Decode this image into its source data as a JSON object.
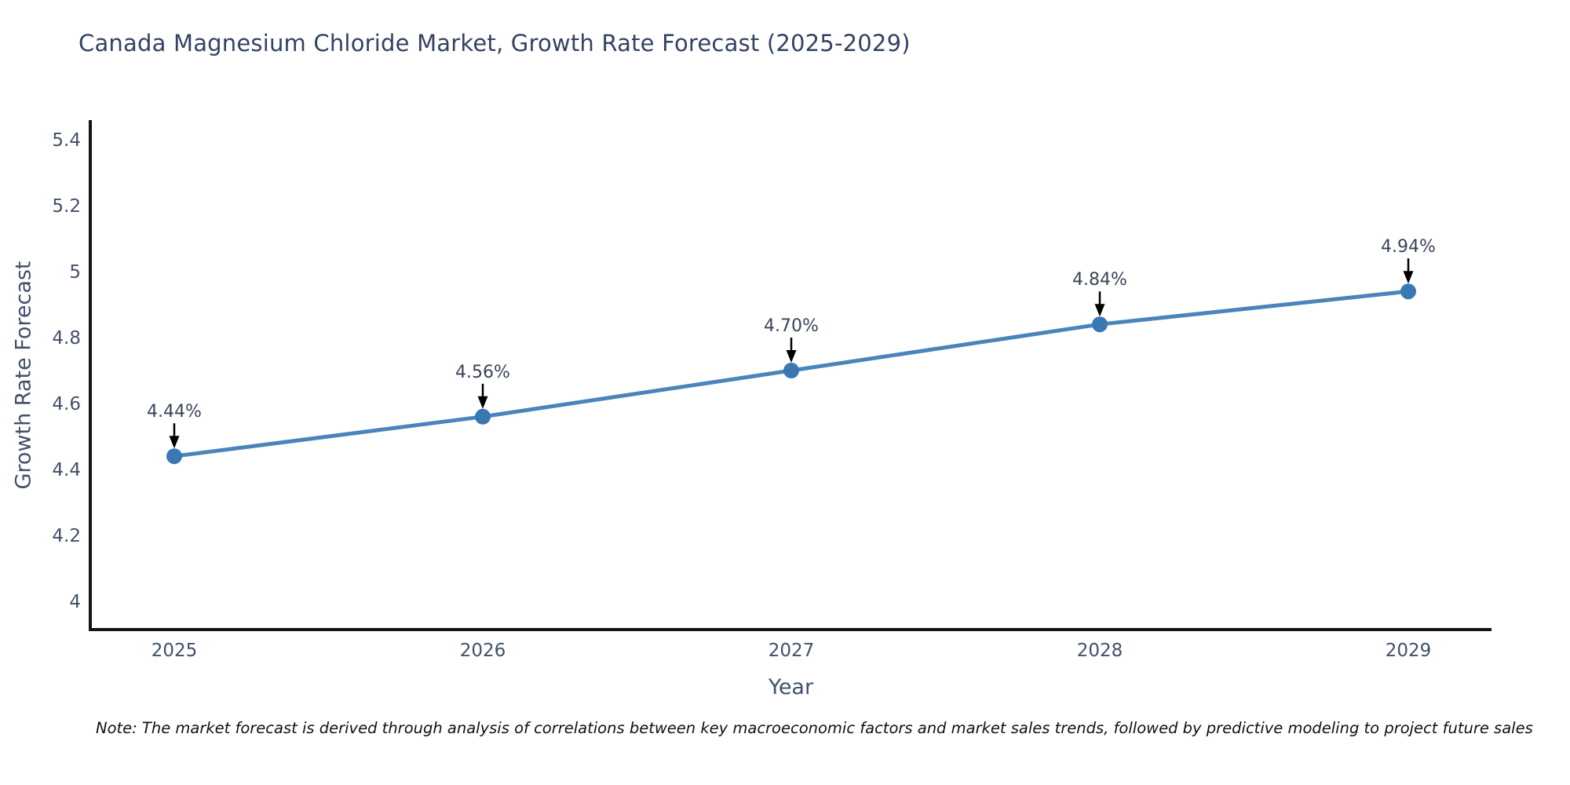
{
  "title": "Canada Magnesium Chloride Market, Growth Rate Forecast (2025-2029)",
  "note": "Note: The market forecast is derived through analysis of correlations between key macroeconomic factors and market sales trends, followed by predictive modeling to project future sales",
  "chart_data": {
    "type": "line",
    "title": "Canada Magnesium Chloride Market, Growth Rate Forecast (2025-2029)",
    "xlabel": "Year",
    "ylabel": "Growth Rate Forecast",
    "x": [
      2025,
      2026,
      2027,
      2028,
      2029
    ],
    "y": [
      4.44,
      4.56,
      4.7,
      4.84,
      4.94
    ],
    "point_labels": [
      "4.44%",
      "4.56%",
      "4.70%",
      "4.84%",
      "4.94%"
    ],
    "x_tick_labels": [
      "2025",
      "2026",
      "2027",
      "2028",
      "2029"
    ],
    "y_ticks": [
      5.4,
      5.2,
      5.0,
      4.8,
      4.6,
      4.4,
      4.2,
      4.0
    ],
    "y_tick_labels": [
      "5.4",
      "5.2",
      "5",
      "4.8",
      "4.6",
      "4.4",
      "4.2",
      "4"
    ],
    "ylim": [
      3.91,
      5.46
    ],
    "grid": false,
    "legend": false,
    "annotation_style": "black down-arrow from label to marker",
    "colors": {
      "line": "#4a84ba",
      "marker": "#3a78b4",
      "annotation_text": "#3a4458",
      "annotation_arrow": "#000000",
      "axis_line": "#141414",
      "tick_text": "#42506b",
      "title_text": "#334363",
      "note_text": "#111111",
      "background": "#ffffff"
    }
  }
}
